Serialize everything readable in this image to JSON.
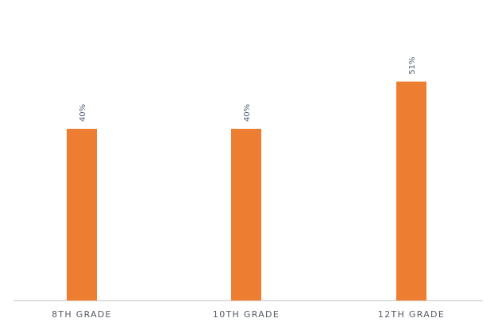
{
  "chart_data": {
    "type": "bar",
    "title": "",
    "xlabel": "",
    "ylabel": "",
    "categories": [
      "8TH GRADE",
      "10TH GRADE",
      "12TH GRADE"
    ],
    "values": [
      40,
      40,
      51
    ],
    "data_labels": [
      "40%",
      "40%",
      "51%"
    ],
    "ylim": [
      0,
      70
    ],
    "grid": false,
    "legend": "none",
    "bar_color": "#ed7d31",
    "axis_color": "#bfbfbf",
    "label_color": "#555a66"
  }
}
